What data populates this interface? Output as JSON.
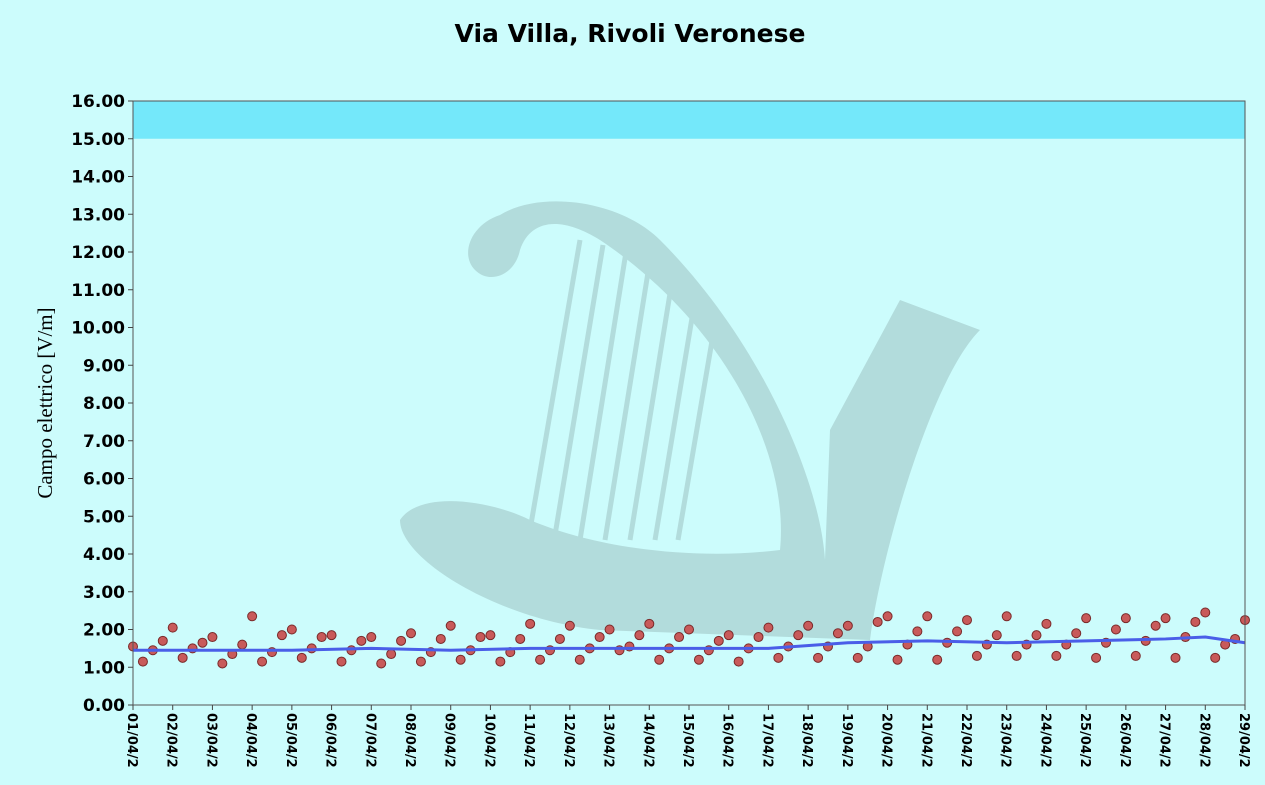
{
  "chart_data": {
    "type": "scatter",
    "title": "Via Villa, Rivoli Veronese",
    "y_label": "Campo elettrico [V/m]",
    "limit_band": [
      15,
      16
    ],
    "limit_color": "#74e8fa",
    "xlim": [
      0,
      28
    ],
    "xticks": [
      {
        "value": 0,
        "label": "01/04/2"
      },
      {
        "value": 1,
        "label": "02/04/2"
      },
      {
        "value": 2,
        "label": "03/04/2"
      },
      {
        "value": 3,
        "label": "04/04/2"
      },
      {
        "value": 4,
        "label": "05/04/2"
      },
      {
        "value": 5,
        "label": "06/04/2"
      },
      {
        "value": 6,
        "label": "07/04/2"
      },
      {
        "value": 7,
        "label": "08/04/2"
      },
      {
        "value": 8,
        "label": "09/04/2"
      },
      {
        "value": 9,
        "label": "10/04/2"
      },
      {
        "value": 10,
        "label": "11/04/2"
      },
      {
        "value": 11,
        "label": "12/04/2"
      },
      {
        "value": 12,
        "label": "13/04/2"
      },
      {
        "value": 13,
        "label": "14/04/2"
      },
      {
        "value": 14,
        "label": "15/04/2"
      },
      {
        "value": 15,
        "label": "16/04/2"
      },
      {
        "value": 16,
        "label": "17/04/2"
      },
      {
        "value": 17,
        "label": "18/04/2"
      },
      {
        "value": 18,
        "label": "19/04/2"
      },
      {
        "value": 19,
        "label": "20/04/2"
      },
      {
        "value": 20,
        "label": "21/04/2"
      },
      {
        "value": 21,
        "label": "22/04/2"
      },
      {
        "value": 22,
        "label": "23/04/2"
      },
      {
        "value": 23,
        "label": "24/04/2"
      },
      {
        "value": 24,
        "label": "25/04/2"
      },
      {
        "value": 25,
        "label": "26/04/2"
      },
      {
        "value": 26,
        "label": "27/04/2"
      },
      {
        "value": 27,
        "label": "28/04/2"
      },
      {
        "value": 28,
        "label": "29/04/2"
      }
    ],
    "ylim": [
      0,
      16
    ],
    "yticks": [
      {
        "value": 0,
        "label": "0.00"
      },
      {
        "value": 1,
        "label": "1.00"
      },
      {
        "value": 2,
        "label": "2.00"
      },
      {
        "value": 3,
        "label": "3.00"
      },
      {
        "value": 4,
        "label": "4.00"
      },
      {
        "value": 5,
        "label": "5.00"
      },
      {
        "value": 6,
        "label": "6.00"
      },
      {
        "value": 7,
        "label": "7.00"
      },
      {
        "value": 8,
        "label": "8.00"
      },
      {
        "value": 9,
        "label": "9.00"
      },
      {
        "value": 10,
        "label": "10.00"
      },
      {
        "value": 11,
        "label": "11.00"
      },
      {
        "value": 12,
        "label": "12.00"
      },
      {
        "value": 13,
        "label": "13.00"
      },
      {
        "value": 14,
        "label": "14.00"
      },
      {
        "value": 15,
        "label": "15.00"
      },
      {
        "value": 16,
        "label": "16.00"
      }
    ],
    "series": [
      {
        "kind": "points",
        "color": "#c85a5a",
        "x": [
          0,
          0.25,
          0.5,
          0.75,
          1,
          1.25,
          1.5,
          1.75,
          2,
          2.25,
          2.5,
          2.75,
          3,
          3.25,
          3.5,
          3.75,
          4,
          4.25,
          4.5,
          4.75,
          5,
          5.25,
          5.5,
          5.75,
          6,
          6.25,
          6.5,
          6.75,
          7,
          7.25,
          7.5,
          7.75,
          8,
          8.25,
          8.5,
          8.75,
          9,
          9.25,
          9.5,
          9.75,
          10,
          10.25,
          10.5,
          10.75,
          11,
          11.25,
          11.5,
          11.75,
          12,
          12.25,
          12.5,
          12.75,
          13,
          13.25,
          13.5,
          13.75,
          14,
          14.25,
          14.5,
          14.75,
          15,
          15.25,
          15.5,
          15.75,
          16,
          16.25,
          16.5,
          16.75,
          17,
          17.25,
          17.5,
          17.75,
          18,
          18.25,
          18.5,
          18.75,
          19,
          19.25,
          19.5,
          19.75,
          20,
          20.25,
          20.5,
          20.75,
          21,
          21.25,
          21.5,
          21.75,
          22,
          22.25,
          22.5,
          22.75,
          23,
          23.25,
          23.5,
          23.75,
          24,
          24.25,
          24.5,
          24.75,
          25,
          25.25,
          25.5,
          25.75,
          26,
          26.25,
          26.5,
          26.75,
          27,
          27.25,
          27.5,
          27.75,
          28
        ],
        "values": [
          1.55,
          1.15,
          1.45,
          1.7,
          2.05,
          1.25,
          1.5,
          1.65,
          1.8,
          1.1,
          1.35,
          1.6,
          2.35,
          1.15,
          1.4,
          1.85,
          2.0,
          1.25,
          1.5,
          1.8,
          1.85,
          1.15,
          1.45,
          1.7,
          1.8,
          1.1,
          1.35,
          1.7,
          1.9,
          1.15,
          1.4,
          1.75,
          2.1,
          1.2,
          1.45,
          1.8,
          1.85,
          1.15,
          1.4,
          1.75,
          2.15,
          1.2,
          1.45,
          1.75,
          2.1,
          1.2,
          1.5,
          1.8,
          2.0,
          1.45,
          1.55,
          1.85,
          2.15,
          1.2,
          1.5,
          1.8,
          2.0,
          1.2,
          1.45,
          1.7,
          1.85,
          1.15,
          1.5,
          1.8,
          2.05,
          1.25,
          1.55,
          1.85,
          2.1,
          1.25,
          1.55,
          1.9,
          2.1,
          1.25,
          1.55,
          2.2,
          2.35,
          1.2,
          1.6,
          1.95,
          2.35,
          1.2,
          1.65,
          1.95,
          2.25,
          1.3,
          1.6,
          1.85,
          2.35,
          1.3,
          1.6,
          1.85,
          2.15,
          1.3,
          1.6,
          1.9,
          2.3,
          1.25,
          1.65,
          2.0,
          2.3,
          1.3,
          1.7,
          2.1,
          2.3,
          1.25,
          1.8,
          2.2,
          2.45,
          1.25,
          1.6,
          1.75,
          2.25
        ]
      },
      {
        "kind": "line",
        "color": "#4a5ee8",
        "x": [
          0,
          2,
          4,
          6,
          8,
          10,
          12,
          14,
          16,
          18,
          20,
          22,
          24,
          26,
          27,
          28
        ],
        "values": [
          1.45,
          1.45,
          1.45,
          1.5,
          1.45,
          1.5,
          1.5,
          1.5,
          1.5,
          1.65,
          1.7,
          1.65,
          1.7,
          1.75,
          1.8,
          1.65
        ]
      }
    ]
  }
}
